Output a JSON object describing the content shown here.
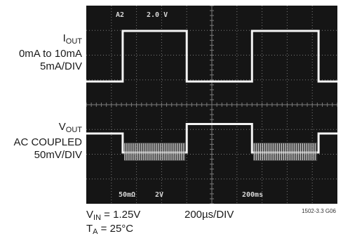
{
  "labels": {
    "iout_prefix": "I",
    "iout_sub": "OUT",
    "iout_range": "0mA to 10mA",
    "iout_scale": "5mA/DIV",
    "vout_prefix": "V",
    "vout_sub": "OUT",
    "vout_coupling": "AC COUPLED",
    "vout_scale": "50mV/DIV",
    "vin_prefix": "V",
    "vin_sub": "IN",
    "vin_value": " = 1.25V",
    "ta_prefix": "T",
    "ta_sub": "A",
    "ta_value": " = 25°C",
    "timebase": "200µs/DIV",
    "figure_id": "1502-3.3 G06"
  },
  "screen": {
    "top_left": "A2",
    "top_center": "2.0 V",
    "bottom_left": "50mΩ",
    "bottom_mid": "2V",
    "bottom_right": "200ms"
  },
  "colors": {
    "screen_bg": "#151515",
    "grid": "#7a7a7a",
    "trace": "#f4f4f4",
    "screen_text": "#d8d8d8"
  },
  "chart_data": {
    "type": "line",
    "x_divisions": 10,
    "y_divisions": 8,
    "series": [
      {
        "name": "IOUT",
        "points": [
          [
            0,
            0
          ],
          [
            1.45,
            0
          ],
          [
            1.45,
            10
          ],
          [
            4.0,
            10
          ],
          [
            4.0,
            0
          ],
          [
            6.6,
            0
          ],
          [
            6.6,
            10
          ],
          [
            9.25,
            10
          ],
          [
            9.25,
            0
          ],
          [
            10,
            0
          ]
        ]
      },
      {
        "name": "VOUT",
        "points": [
          [
            0,
            0
          ],
          [
            1.45,
            0
          ],
          [
            1.45,
            -10
          ],
          [
            4.0,
            -10
          ],
          [
            4.0,
            5
          ],
          [
            6.6,
            5
          ],
          [
            6.6,
            -10
          ],
          [
            9.25,
            -10
          ],
          [
            9.25,
            0
          ],
          [
            10,
            0
          ]
        ]
      }
    ]
  }
}
